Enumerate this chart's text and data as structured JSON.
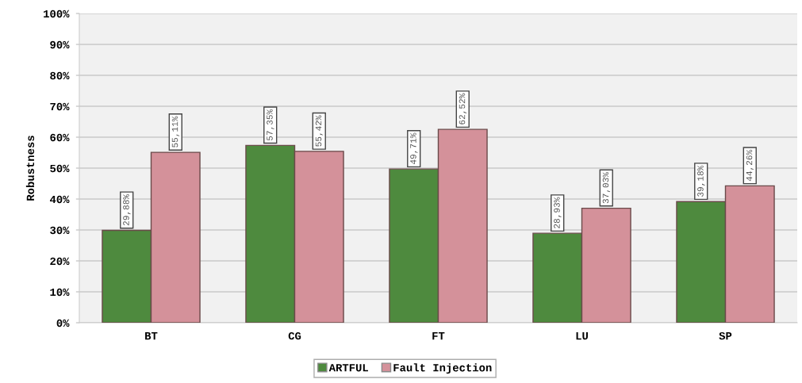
{
  "chart_data": {
    "type": "bar",
    "ylabel": "Robustness",
    "categories": [
      "BT",
      "CG",
      "FT",
      "LU",
      "SP"
    ],
    "series": [
      {
        "name": "ARTFUL",
        "color": "#4e8a3e",
        "values": [
          29.88,
          57.35,
          49.71,
          28.93,
          39.18
        ],
        "value_labels": [
          "29,88%",
          "57,35%",
          "49,71%",
          "28,93%",
          "39,18%"
        ]
      },
      {
        "name": "Fault Injection",
        "color": "#d4919a",
        "values": [
          55.11,
          55.42,
          62.52,
          37.03,
          44.26
        ],
        "value_labels": [
          "55,11%",
          "55,42%",
          "62,52%",
          "37,03%",
          "44,26%"
        ]
      }
    ],
    "ylim": [
      0,
      100
    ],
    "yticks": [
      {
        "value": 0,
        "label": "0%"
      },
      {
        "value": 10,
        "label": "10%"
      },
      {
        "value": 20,
        "label": "20%"
      },
      {
        "value": 30,
        "label": "30%"
      },
      {
        "value": 40,
        "label": "40%"
      },
      {
        "value": 50,
        "label": "50%"
      },
      {
        "value": 60,
        "label": "60%"
      },
      {
        "value": 70,
        "label": "70%"
      },
      {
        "value": 80,
        "label": "80%"
      },
      {
        "value": 90,
        "label": "90%"
      },
      {
        "value": 100,
        "label": "100%"
      }
    ],
    "grid": "y",
    "legend": "bottom"
  }
}
